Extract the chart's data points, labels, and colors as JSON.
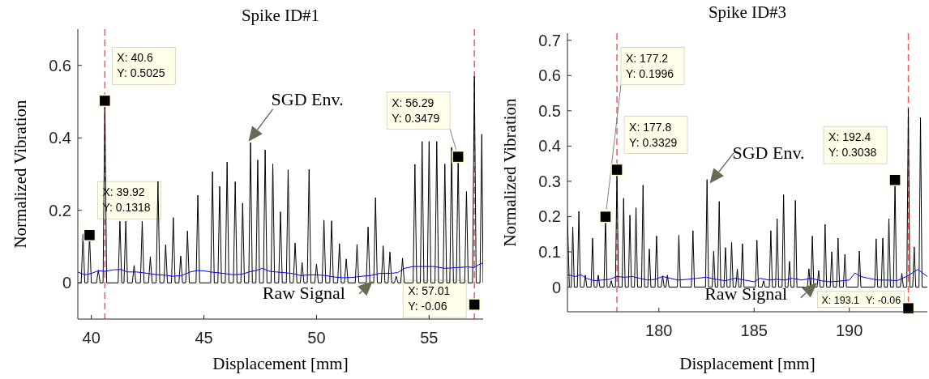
{
  "chart_data": [
    {
      "type": "line",
      "title": "Spike ID#1",
      "xlabel": "Displacement [mm]",
      "ylabel": "Normalized Vibration",
      "xlim": [
        39.4,
        57.4
      ],
      "ylim": [
        -0.1,
        0.7
      ],
      "xticks": [
        40,
        45,
        50,
        55
      ],
      "yticks": [
        0,
        0.2,
        0.4,
        0.6
      ],
      "series": [
        {
          "name": "SGD Env.",
          "color": "#000000",
          "x": [
            39.4,
            39.55,
            39.63,
            39.71,
            39.84,
            39.92,
            40.0,
            40.23,
            40.31,
            40.39,
            40.52,
            40.6,
            40.68,
            41.19,
            41.27,
            41.35,
            41.45,
            41.53,
            41.61,
            41.82,
            41.9,
            41.98,
            42.18,
            42.26,
            42.34,
            42.54,
            42.62,
            42.7,
            42.88,
            42.96,
            43.04,
            43.22,
            43.3,
            43.38,
            43.56,
            43.64,
            43.72,
            43.89,
            43.97,
            44.05,
            44.19,
            44.27,
            44.35,
            44.65,
            44.73,
            44.81,
            45.3,
            45.38,
            45.46,
            45.62,
            45.7,
            45.78,
            45.95,
            46.03,
            46.11,
            46.31,
            46.39,
            46.47,
            46.64,
            46.72,
            46.8,
            46.99,
            47.07,
            47.15,
            47.31,
            47.39,
            47.47,
            47.64,
            47.72,
            47.8,
            47.98,
            48.06,
            48.14,
            48.32,
            48.4,
            48.48,
            48.66,
            48.74,
            48.82,
            48.97,
            49.05,
            49.13,
            49.28,
            49.36,
            49.44,
            49.59,
            49.67,
            49.75,
            49.92,
            50.0,
            50.08,
            50.25,
            50.33,
            50.41,
            50.59,
            50.67,
            50.75,
            50.94,
            51.02,
            51.1,
            51.24,
            51.32,
            51.4,
            51.72,
            51.8,
            51.88,
            52.21,
            52.29,
            52.37,
            52.54,
            52.62,
            52.7,
            52.88,
            52.96,
            53.04,
            53.18,
            53.26,
            53.34,
            53.46,
            53.54,
            53.62,
            53.74,
            53.82,
            53.9,
            54.29,
            54.37,
            54.45,
            54.61,
            54.69,
            54.77,
            54.92,
            55.0,
            55.08,
            55.26,
            55.34,
            55.42,
            55.62,
            55.7,
            55.78,
            55.92,
            56.0,
            56.08,
            56.21,
            56.29,
            56.37,
            56.58,
            56.66,
            56.74,
            56.93,
            57.01,
            57.09,
            57.26,
            57.34,
            57.4
          ],
          "values": [
            0,
            0,
            0.135,
            0,
            0,
            0.1318,
            0,
            0,
            0.035,
            0,
            0,
            0.5025,
            0,
            0,
            0.17,
            0,
            0,
            0.17,
            0,
            0,
            0.048,
            0,
            0,
            0.17,
            0,
            0,
            0.072,
            0,
            0,
            0.28,
            0,
            0,
            0.105,
            0,
            0,
            0.18,
            0,
            0,
            0.074,
            0,
            0,
            0.143,
            0,
            0,
            0.242,
            0,
            0,
            0.307,
            0,
            0,
            0.266,
            0,
            0,
            0.333,
            0,
            0,
            0.279,
            0,
            0,
            0.22,
            0,
            0,
            0.387,
            0,
            0,
            0.339,
            0,
            0,
            0.367,
            0,
            0,
            0.328,
            0,
            0,
            0.196,
            0,
            0,
            0.312,
            0,
            0,
            0.11,
            0,
            0,
            0.056,
            0,
            0,
            0.313,
            0,
            0,
            0.052,
            0,
            0,
            0.173,
            0,
            0,
            0.171,
            0,
            0,
            0.108,
            0,
            0,
            0.066,
            0,
            0,
            0.106,
            0,
            0,
            0.154,
            0,
            0,
            0.235,
            0,
            0,
            0.102,
            0,
            0,
            0.085,
            0,
            0,
            0.018,
            0,
            0,
            0.068,
            0,
            0,
            0.327,
            0,
            0,
            0.39,
            0,
            0,
            0.39,
            0,
            0,
            0.39,
            0,
            0,
            0.328,
            0,
            0,
            0.374,
            0,
            0,
            0.3479,
            0,
            0,
            0.252,
            0,
            0,
            0.57,
            0,
            0,
            0.41,
            0
          ]
        },
        {
          "name": "Raw Signal",
          "color": "#0000ff",
          "x": [
            39.4,
            39.7,
            40.0,
            40.3,
            40.6,
            41.0,
            41.3,
            41.6,
            42.0,
            42.3,
            42.6,
            43.0,
            43.3,
            43.6,
            44.0,
            44.4,
            44.7,
            45.0,
            45.3,
            45.6,
            46.0,
            46.3,
            46.7,
            47.0,
            47.3,
            47.6,
            47.9,
            48.2,
            48.6,
            49.0,
            49.3,
            49.7,
            50.0,
            50.4,
            50.8,
            51.2,
            51.6,
            52.0,
            52.4,
            52.8,
            53.2,
            53.6,
            53.9,
            54.3,
            54.7,
            55.2,
            55.7,
            56.2,
            56.7,
            57.0,
            57.2,
            57.4
          ],
          "values": [
            0.03,
            0.022,
            0.026,
            0.033,
            0.032,
            0.036,
            0.037,
            0.03,
            0.03,
            0.028,
            0.025,
            0.022,
            0.021,
            0.018,
            0.02,
            0.03,
            0.034,
            0.033,
            0.03,
            0.028,
            0.025,
            0.022,
            0.024,
            0.03,
            0.034,
            0.04,
            0.032,
            0.03,
            0.028,
            0.025,
            0.02,
            0.022,
            0.022,
            0.02,
            0.016,
            0.014,
            0.015,
            0.018,
            0.02,
            0.026,
            0.026,
            0.028,
            0.04,
            0.045,
            0.045,
            0.045,
            0.04,
            0.042,
            0.044,
            0.042,
            0.05,
            0.055
          ]
        },
        {
          "type": "scatter",
          "color": "#000000",
          "marker": "square",
          "x": [
            39.92,
            40.6,
            56.29,
            57.01
          ],
          "values": [
            0.1318,
            0.5025,
            0.3479,
            -0.06
          ]
        }
      ],
      "ref_lines": [
        {
          "axis": "x",
          "value": 40.6,
          "color": "#ff5555",
          "line_style": "dashed"
        },
        {
          "axis": "x",
          "value": 57.01,
          "color": "#ff5555",
          "line_style": "dashed"
        }
      ],
      "annotations": [
        {
          "text": "X: 39.92\nY: 0.1318",
          "x": 39.92,
          "y": 0.1318
        },
        {
          "text": "X: 40.6\nY: 0.5025",
          "x": 40.6,
          "y": 0.5025
        },
        {
          "text": "X: 56.29\nY: 0.3479",
          "x": 56.29,
          "y": 0.3479
        },
        {
          "text": "X: 57.01\nY: -0.06",
          "x": 57.01,
          "y": -0.06
        }
      ]
    },
    {
      "type": "line",
      "title": "Spike ID#3",
      "xlabel": "Displacement [mm]",
      "ylabel": "Normalized Vibration",
      "xlim": [
        175.2,
        194.1
      ],
      "ylim": [
        -0.07,
        0.72
      ],
      "xticks": [
        180,
        185,
        190
      ],
      "yticks": [
        0,
        0.1,
        0.2,
        0.3,
        0.4,
        0.5,
        0.6,
        0.7
      ],
      "series": [
        {
          "name": "SGD Env.",
          "color": "#000000",
          "x": [
            175.2,
            175.3,
            175.4,
            175.48,
            175.56,
            175.72,
            175.8,
            175.88,
            176.06,
            176.14,
            176.22,
            176.44,
            176.52,
            176.6,
            176.74,
            176.82,
            176.9,
            177.12,
            177.2,
            177.28,
            177.42,
            177.5,
            177.58,
            177.72,
            177.8,
            177.88,
            178.07,
            178.15,
            178.23,
            178.4,
            178.48,
            178.56,
            178.72,
            178.8,
            178.88,
            179.09,
            179.17,
            179.25,
            179.42,
            179.5,
            179.58,
            179.8,
            179.88,
            179.96,
            180.12,
            180.2,
            180.28,
            180.37,
            180.45,
            180.53,
            180.97,
            181.05,
            181.13,
            181.71,
            181.79,
            181.87,
            182.45,
            182.53,
            182.61,
            182.8,
            182.88,
            182.96,
            183.09,
            183.17,
            183.25,
            183.42,
            183.5,
            183.58,
            183.74,
            183.82,
            183.9,
            184.04,
            184.12,
            184.2,
            184.31,
            184.39,
            184.47,
            185.07,
            185.15,
            185.23,
            185.42,
            185.5,
            185.58,
            185.8,
            185.88,
            185.96,
            186.13,
            186.21,
            186.29,
            186.47,
            186.55,
            186.63,
            186.78,
            186.86,
            186.94,
            187.09,
            187.17,
            187.25,
            187.8,
            187.88,
            187.96,
            187.98,
            188.06,
            188.14,
            188.31,
            188.39,
            188.47,
            188.65,
            188.73,
            188.81,
            189.0,
            189.08,
            189.16,
            189.33,
            189.41,
            189.49,
            189.69,
            189.77,
            189.85,
            190.45,
            190.53,
            190.61,
            191.33,
            191.41,
            191.49,
            191.68,
            191.76,
            191.84,
            192.0,
            192.08,
            192.16,
            192.32,
            192.4,
            192.48,
            192.68,
            192.76,
            192.84,
            193.02,
            193.1,
            193.18,
            193.33,
            193.41,
            193.49,
            193.66,
            193.74,
            193.82,
            194.1
          ],
          "values": [
            0.2,
            0,
            0,
            0.17,
            0,
            0,
            0.215,
            0,
            0,
            0.034,
            0,
            0,
            0.139,
            0,
            0,
            0.034,
            0,
            0,
            0.1996,
            0,
            0,
            0.018,
            0,
            0,
            0.3329,
            0,
            0,
            0.252,
            0,
            0,
            0.204,
            0,
            0,
            0.225,
            0,
            0,
            0.289,
            0,
            0,
            0.108,
            0,
            0,
            0.145,
            0,
            0,
            0.032,
            0,
            0,
            0.034,
            0,
            0,
            0.147,
            0,
            0,
            0.16,
            0,
            0,
            0.305,
            0,
            0,
            0.102,
            0,
            0,
            0.243,
            0,
            0,
            0.112,
            0,
            0,
            0.127,
            0,
            0,
            0.051,
            0,
            0,
            0.123,
            0,
            0,
            0.133,
            0,
            0,
            0.018,
            0,
            0,
            0.16,
            0,
            0,
            0.194,
            0,
            0,
            0.262,
            0,
            0,
            0.073,
            0,
            0,
            0.246,
            0,
            0,
            0.052,
            0,
            0,
            0.145,
            0,
            0,
            0.047,
            0,
            0,
            0.178,
            0,
            0,
            0.1,
            0,
            0,
            0.139,
            0,
            0,
            0.093,
            0,
            0,
            0.102,
            0,
            0,
            0.137,
            0,
            0,
            0.139,
            0,
            0,
            0.194,
            0,
            0,
            0.3038,
            0,
            0,
            0.039,
            0,
            0,
            0.506,
            0,
            0,
            0.114,
            0,
            0,
            0.481,
            0,
            0
          ]
        },
        {
          "name": "Raw Signal",
          "color": "#0000ff",
          "x": [
            175.2,
            175.6,
            175.9,
            176.2,
            176.6,
            177.0,
            177.4,
            177.8,
            178.2,
            178.6,
            179.0,
            179.4,
            179.8,
            180.2,
            180.6,
            181.0,
            181.5,
            182.0,
            182.5,
            183.0,
            183.5,
            184.0,
            184.5,
            185.0,
            185.3,
            185.8,
            186.2,
            186.6,
            187.0,
            187.5,
            188.0,
            188.5,
            189.0,
            189.5,
            190.0,
            190.3,
            190.6,
            191.0,
            191.5,
            192.0,
            192.5,
            193.0,
            193.3,
            193.6,
            194.1
          ],
          "values": [
            0.035,
            0.03,
            0.035,
            0.025,
            0.018,
            0.02,
            0.022,
            0.03,
            0.028,
            0.03,
            0.025,
            0.02,
            0.022,
            0.03,
            0.025,
            0.02,
            0.022,
            0.025,
            0.028,
            0.022,
            0.018,
            0.025,
            0.02,
            0.015,
            0.025,
            0.02,
            0.022,
            0.02,
            0.025,
            0.02,
            0.025,
            0.018,
            0.015,
            0.017,
            0.02,
            0.04,
            0.03,
            0.025,
            0.02,
            0.02,
            0.018,
            0.03,
            0.04,
            0.05,
            0.03
          ]
        },
        {
          "type": "scatter",
          "color": "#000000",
          "marker": "square",
          "x": [
            177.2,
            177.8,
            192.4,
            193.1
          ],
          "values": [
            0.1996,
            0.3329,
            0.3038,
            -0.06
          ]
        }
      ],
      "ref_lines": [
        {
          "axis": "x",
          "value": 177.8,
          "color": "#ff5555",
          "line_style": "dashed"
        },
        {
          "axis": "x",
          "value": 193.1,
          "color": "#ff5555",
          "line_style": "dashed"
        }
      ],
      "annotations": [
        {
          "text": "X: 177.2\nY: 0.1996",
          "x": 177.2,
          "y": 0.1996
        },
        {
          "text": "X: 177.8\nY: 0.3329",
          "x": 177.8,
          "y": 0.3329
        },
        {
          "text": "X: 192.4\nY: 0.3038",
          "x": 192.4,
          "y": 0.3038
        },
        {
          "text": "X: 193.1\nY: -0.06",
          "x": 193.1,
          "y": -0.06
        }
      ]
    }
  ]
}
